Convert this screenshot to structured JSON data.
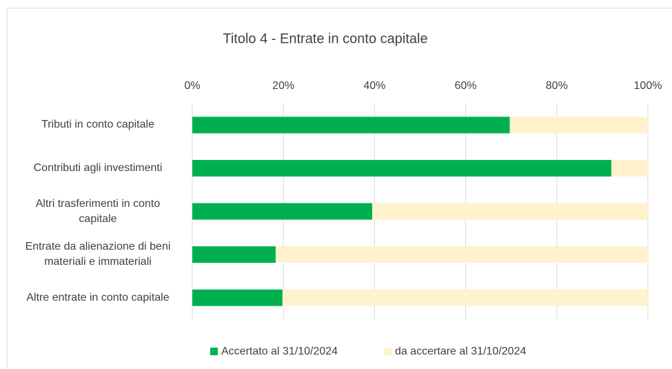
{
  "chart_data": {
    "type": "stacked_bar_horizontal",
    "title": "Titolo 4 - Entrate in conto capitale",
    "categories": [
      "Tributi in conto capitale",
      "Contributi agli investimenti",
      "Altri trasferimenti in conto capitale",
      "Entrate da alienazione di beni materiali e immateriali",
      "Altre entrate in conto capitale"
    ],
    "series": [
      {
        "name": "Accertato al 31/10/2024",
        "color": "#00b050",
        "values": [
          69.7,
          92,
          39.5,
          18.3,
          19.8
        ]
      },
      {
        "name": "da accertare al 31/10/2024",
        "color": "#fff2cc",
        "values": [
          30.3,
          8,
          60.5,
          81.7,
          80.2
        ]
      }
    ],
    "xlim": [
      0,
      100
    ],
    "xticks": [
      {
        "value": 0,
        "label": "0%"
      },
      {
        "value": 20,
        "label": "20%"
      },
      {
        "value": 40,
        "label": "40%"
      },
      {
        "value": 60,
        "label": "60%"
      },
      {
        "value": 80,
        "label": "80%"
      },
      {
        "value": 100,
        "label": "100%"
      }
    ],
    "grid": true,
    "legend": "bottom"
  }
}
